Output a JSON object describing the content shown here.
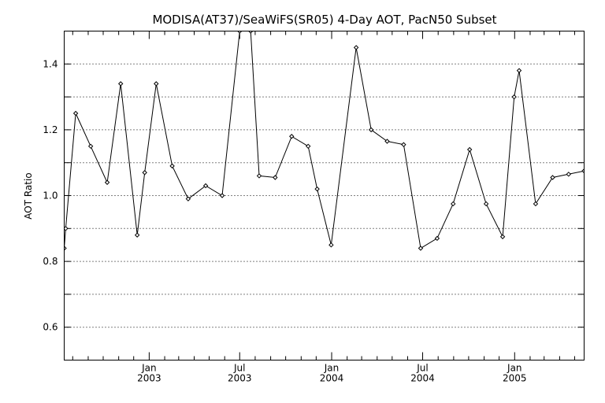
{
  "chart_data": {
    "type": "line",
    "title": "MODISA(AT37)/SeaWiFS(SR05) 4-Day AOT, PacN50 Subset",
    "xlabel": "",
    "ylabel": "AOT Ratio",
    "xlim": [
      "2002-07-15",
      "2005-05-20"
    ],
    "ylim": [
      0.5,
      1.5
    ],
    "y_ticks": [
      0.6,
      0.8,
      1.0,
      1.2,
      1.4
    ],
    "y_tick_labels": [
      "0.6",
      "0.8",
      "1.0",
      "1.2",
      "1.4"
    ],
    "y_grid": [
      0.6,
      0.7,
      0.8,
      0.9,
      1.0,
      1.1,
      1.2,
      1.3,
      1.4
    ],
    "x_major_ticks": [
      {
        "date": "2003-01-01",
        "month": "Jan",
        "year": "2003"
      },
      {
        "date": "2003-07-01",
        "month": "Jul",
        "year": "2003"
      },
      {
        "date": "2004-01-01",
        "month": "Jan",
        "year": "2004"
      },
      {
        "date": "2004-07-01",
        "month": "Jul",
        "year": "2004"
      },
      {
        "date": "2005-01-01",
        "month": "Jan",
        "year": "2005"
      }
    ],
    "x_minor_ticks": [
      "2002-08-01",
      "2002-09-01",
      "2002-10-01",
      "2002-11-01",
      "2002-12-01",
      "2003-02-01",
      "2003-03-01",
      "2003-04-01",
      "2003-05-01",
      "2003-06-01",
      "2003-08-01",
      "2003-09-01",
      "2003-10-01",
      "2003-11-01",
      "2003-12-01",
      "2004-02-01",
      "2004-03-01",
      "2004-04-01",
      "2004-05-01",
      "2004-06-01",
      "2004-08-01",
      "2004-09-01",
      "2004-10-01",
      "2004-11-01",
      "2004-12-01",
      "2005-02-01",
      "2005-03-01",
      "2005-04-01",
      "2005-05-01"
    ],
    "grid": true,
    "series": [
      {
        "points": [
          {
            "x": "2002-07-15",
            "y": 0.84
          },
          {
            "x": "2002-07-18",
            "y": 0.9
          },
          {
            "x": "2002-08-07",
            "y": 1.25
          },
          {
            "x": "2002-09-06",
            "y": 1.15
          },
          {
            "x": "2002-10-09",
            "y": 1.04
          },
          {
            "x": "2002-11-05",
            "y": 1.34
          },
          {
            "x": "2002-12-08",
            "y": 0.88
          },
          {
            "x": "2002-12-23",
            "y": 1.07
          },
          {
            "x": "2003-01-15",
            "y": 1.34
          },
          {
            "x": "2003-02-16",
            "y": 1.09
          },
          {
            "x": "2003-03-20",
            "y": 0.99
          },
          {
            "x": "2003-04-24",
            "y": 1.03
          },
          {
            "x": "2003-05-27",
            "y": 1.0
          },
          {
            "x": "2003-07-01",
            "y": 1.5
          },
          {
            "x": "2003-07-23",
            "y": 1.5
          },
          {
            "x": "2003-08-09",
            "y": 1.06
          },
          {
            "x": "2003-09-10",
            "y": 1.055
          },
          {
            "x": "2003-10-13",
            "y": 1.18
          },
          {
            "x": "2003-11-15",
            "y": 1.15
          },
          {
            "x": "2003-12-03",
            "y": 1.02
          },
          {
            "x": "2003-12-31",
            "y": 0.85
          },
          {
            "x": "2004-02-19",
            "y": 1.45
          },
          {
            "x": "2004-03-20",
            "y": 1.2
          },
          {
            "x": "2004-04-21",
            "y": 1.165
          },
          {
            "x": "2004-05-24",
            "y": 1.155
          },
          {
            "x": "2004-06-27",
            "y": 0.84
          },
          {
            "x": "2004-07-30",
            "y": 0.87
          },
          {
            "x": "2004-08-31",
            "y": 0.975
          },
          {
            "x": "2004-10-03",
            "y": 1.14
          },
          {
            "x": "2004-11-05",
            "y": 0.975
          },
          {
            "x": "2004-12-08",
            "y": 0.875
          },
          {
            "x": "2004-12-31",
            "y": 1.3
          },
          {
            "x": "2005-01-10",
            "y": 1.38
          },
          {
            "x": "2005-02-12",
            "y": 0.975
          },
          {
            "x": "2005-03-18",
            "y": 1.055
          },
          {
            "x": "2005-04-19",
            "y": 1.065
          },
          {
            "x": "2005-05-20",
            "y": 1.075
          }
        ]
      }
    ]
  }
}
